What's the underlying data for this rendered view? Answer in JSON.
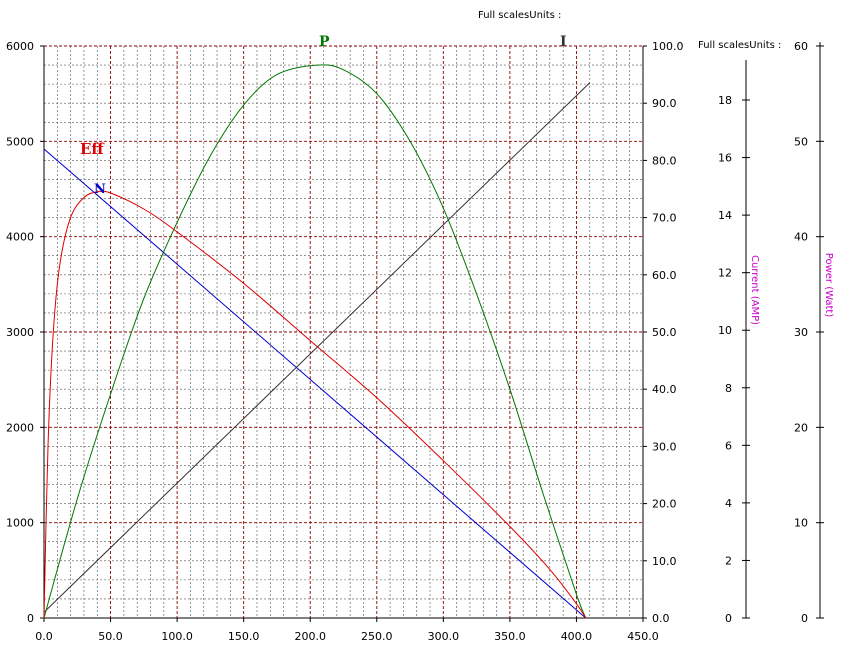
{
  "chart_data": {
    "type": "line",
    "header_top": "Full scalesUnits :",
    "header_right": "Full scalesUnits :",
    "x_axis": {
      "ticks": [
        "0.0",
        "50.0",
        "100.0",
        "150.0",
        "200.0",
        "250.0",
        "300.0",
        "350.0",
        "400.0",
        "450.0"
      ],
      "lim": [
        0,
        450
      ]
    },
    "y_left": {
      "ticks": [
        "0",
        "1000",
        "2000",
        "3000",
        "4000",
        "5000",
        "6000"
      ],
      "lim": [
        0,
        6000
      ]
    },
    "y_eff": {
      "ticks": [
        "0.0",
        "10.0",
        "20.0",
        "30.0",
        "40.0",
        "50.0",
        "60.0",
        "70.0",
        "80.0",
        "90.0",
        "100.0"
      ],
      "lim": [
        0,
        100
      ]
    },
    "y_current": {
      "label": "Current (AMP)",
      "ticks": [
        "0",
        "2",
        "4",
        "6",
        "8",
        "10",
        "12",
        "14",
        "16",
        "18"
      ],
      "lim": [
        0,
        19
      ]
    },
    "y_power": {
      "label": "Power (Watt)",
      "ticks": [
        "0",
        "10",
        "20",
        "30",
        "40",
        "50",
        "60"
      ],
      "lim": [
        0,
        60
      ]
    },
    "series": [
      {
        "name": "N",
        "color": "#0000cc",
        "axis": "left",
        "x": [
          0,
          407
        ],
        "y": [
          4920,
          0
        ]
      },
      {
        "name": "I",
        "color": "#333333",
        "axis": "current",
        "x": [
          0,
          410
        ],
        "y": [
          0.2,
          18.6
        ]
      },
      {
        "name": "P",
        "color": "#007700",
        "axis": "power",
        "x": [
          0,
          25,
          50,
          75,
          100,
          125,
          150,
          175,
          205,
          225,
          250,
          275,
          300,
          325,
          350,
          375,
          400,
          407
        ],
        "y": [
          0,
          12.5,
          23.5,
          33.5,
          41.5,
          48.5,
          53.8,
          57.0,
          58.0,
          57.5,
          55.0,
          50.0,
          43.0,
          34.0,
          24.0,
          13.0,
          2.5,
          0
        ]
      },
      {
        "name": "Eff",
        "color": "#dd0000",
        "axis": "eff",
        "x": [
          0,
          3,
          7,
          12,
          20,
          30,
          40,
          50,
          75,
          100,
          150,
          200,
          250,
          300,
          350,
          380,
          400,
          407
        ],
        "y": [
          0,
          30,
          50,
          62,
          70,
          73.5,
          74.5,
          74.3,
          71.5,
          67.5,
          58.5,
          48.5,
          38.5,
          27.5,
          16,
          8.5,
          2.5,
          0
        ]
      }
    ],
    "grid": true
  }
}
